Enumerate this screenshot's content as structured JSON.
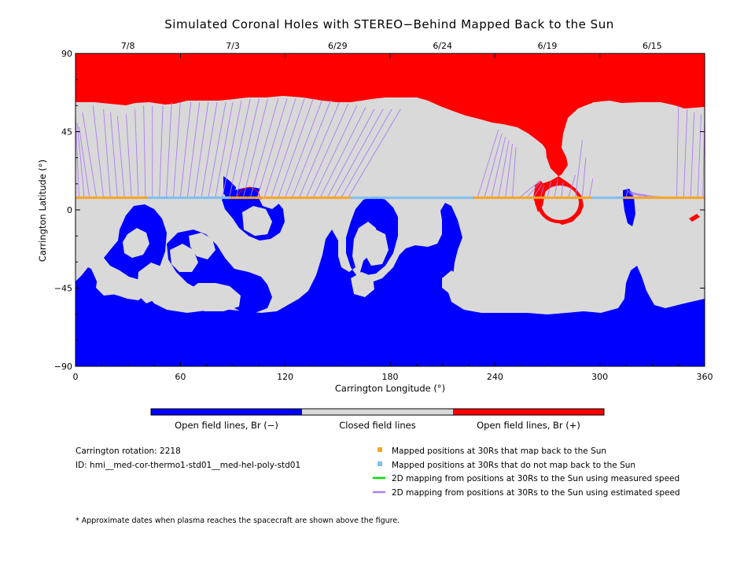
{
  "chart_data": {
    "type": "map",
    "title": "Simulated Coronal Holes with STEREO−Behind Mapped Back to the Sun",
    "xlabel": "Carrington Longitude (°)",
    "ylabel": "Carrington Latitude (°)",
    "xlim": [
      0,
      360
    ],
    "ylim": [
      -90,
      90
    ],
    "x_ticks": [
      0,
      60,
      120,
      180,
      240,
      300,
      360
    ],
    "y_ticks": [
      -90,
      -45,
      0,
      45,
      90
    ],
    "x_tick_labels": [
      "0",
      "60",
      "120",
      "180",
      "240",
      "300",
      "360"
    ],
    "y_tick_labels": [
      "−90",
      "−45",
      "0",
      "45",
      "90"
    ],
    "top_dates": [
      {
        "label": "7/8",
        "lon": 30
      },
      {
        "label": "7/3",
        "lon": 90
      },
      {
        "label": "6/29",
        "lon": 150
      },
      {
        "label": "6/24",
        "lon": 210
      },
      {
        "label": "6/19",
        "lon": 270
      },
      {
        "label": "6/15",
        "lon": 330
      }
    ],
    "colorbar": [
      {
        "label": "Open field lines, Br (−)",
        "color": "#0000ff"
      },
      {
        "label": "Closed field lines",
        "color": "#d9d9d9"
      },
      {
        "label": "Open field lines, Br (+)",
        "color": "#ff0000"
      }
    ],
    "spacecraft_track_lat": 7,
    "mapped_segments": [
      [
        0,
        42
      ],
      [
        87,
        158
      ],
      [
        228,
        296
      ],
      [
        313,
        360
      ]
    ],
    "unmapped_segments": [
      [
        42,
        87
      ],
      [
        158,
        228
      ],
      [
        296,
        313
      ]
    ],
    "estimated_speed_lines": [
      {
        "from_lon": 2,
        "to_lon": 0,
        "to_lat": 55
      },
      {
        "from_lon": 5,
        "to_lon": 1,
        "to_lat": 50
      },
      {
        "from_lon": 8,
        "to_lon": 2,
        "to_lat": 48
      },
      {
        "from_lon": 12,
        "to_lon": 4,
        "to_lat": 56
      },
      {
        "from_lon": 16,
        "to_lon": 10,
        "to_lat": 60
      },
      {
        "from_lon": 20,
        "to_lon": 16,
        "to_lat": 58
      },
      {
        "from_lon": 24,
        "to_lon": 20,
        "to_lat": 56
      },
      {
        "from_lon": 28,
        "to_lon": 24,
        "to_lat": 54
      },
      {
        "from_lon": 32,
        "to_lon": 29,
        "to_lat": 55
      },
      {
        "from_lon": 36,
        "to_lon": 34,
        "to_lat": 58
      },
      {
        "from_lon": 40,
        "to_lon": 39,
        "to_lat": 60
      },
      {
        "from_lon": 44,
        "to_lon": 44,
        "to_lat": 60
      },
      {
        "from_lon": 48,
        "to_lon": 50,
        "to_lat": 60
      },
      {
        "from_lon": 52,
        "to_lon": 55,
        "to_lat": 62
      },
      {
        "from_lon": 56,
        "to_lon": 60,
        "to_lat": 62
      },
      {
        "from_lon": 60,
        "to_lon": 66,
        "to_lat": 62
      },
      {
        "from_lon": 64,
        "to_lon": 71,
        "to_lat": 62
      },
      {
        "from_lon": 68,
        "to_lon": 76,
        "to_lat": 62
      },
      {
        "from_lon": 72,
        "to_lon": 81,
        "to_lat": 62
      },
      {
        "from_lon": 76,
        "to_lon": 86,
        "to_lat": 62
      },
      {
        "from_lon": 80,
        "to_lon": 90,
        "to_lat": 62
      },
      {
        "from_lon": 84,
        "to_lon": 95,
        "to_lat": 63
      },
      {
        "from_lon": 88,
        "to_lon": 100,
        "to_lat": 64
      },
      {
        "from_lon": 92,
        "to_lon": 105,
        "to_lat": 64
      },
      {
        "from_lon": 96,
        "to_lon": 110,
        "to_lat": 64
      },
      {
        "from_lon": 100,
        "to_lon": 116,
        "to_lat": 64
      },
      {
        "from_lon": 104,
        "to_lon": 121,
        "to_lat": 64
      },
      {
        "from_lon": 108,
        "to_lon": 126,
        "to_lat": 64
      },
      {
        "from_lon": 112,
        "to_lon": 131,
        "to_lat": 64
      },
      {
        "from_lon": 116,
        "to_lon": 136,
        "to_lat": 64
      },
      {
        "from_lon": 120,
        "to_lon": 141,
        "to_lat": 63
      },
      {
        "from_lon": 124,
        "to_lon": 146,
        "to_lat": 63
      },
      {
        "from_lon": 128,
        "to_lon": 151,
        "to_lat": 62
      },
      {
        "from_lon": 132,
        "to_lon": 156,
        "to_lat": 61
      },
      {
        "from_lon": 136,
        "to_lon": 161,
        "to_lat": 60
      },
      {
        "from_lon": 140,
        "to_lon": 166,
        "to_lat": 59
      },
      {
        "from_lon": 144,
        "to_lon": 171,
        "to_lat": 58
      },
      {
        "from_lon": 148,
        "to_lon": 176,
        "to_lat": 58
      },
      {
        "from_lon": 152,
        "to_lon": 181,
        "to_lat": 58
      },
      {
        "from_lon": 156,
        "to_lon": 186,
        "to_lat": 58
      },
      {
        "from_lon": 230,
        "to_lon": 242,
        "to_lat": 46
      },
      {
        "from_lon": 234,
        "to_lon": 244,
        "to_lat": 44
      },
      {
        "from_lon": 238,
        "to_lon": 246,
        "to_lat": 42
      },
      {
        "from_lon": 242,
        "to_lon": 248,
        "to_lat": 40
      },
      {
        "from_lon": 246,
        "to_lon": 250,
        "to_lat": 38
      },
      {
        "from_lon": 250,
        "to_lon": 252,
        "to_lat": 36
      },
      {
        "from_lon": 254,
        "to_lon": 266,
        "to_lat": 17
      },
      {
        "from_lon": 258,
        "to_lon": 266,
        "to_lat": 16
      },
      {
        "from_lon": 262,
        "to_lon": 267,
        "to_lat": 15
      },
      {
        "from_lon": 266,
        "to_lon": 268,
        "to_lat": 14
      },
      {
        "from_lon": 270,
        "to_lon": 272,
        "to_lat": 16
      },
      {
        "from_lon": 274,
        "to_lon": 276,
        "to_lat": 18
      },
      {
        "from_lon": 278,
        "to_lon": 279,
        "to_lat": 16
      },
      {
        "from_lon": 282,
        "to_lon": 286,
        "to_lat": 20
      },
      {
        "from_lon": 286,
        "to_lon": 290,
        "to_lat": 40
      },
      {
        "from_lon": 290,
        "to_lon": 292,
        "to_lat": 30
      },
      {
        "from_lon": 294,
        "to_lon": 296,
        "to_lat": 18
      },
      {
        "from_lon": 315,
        "to_lon": 316,
        "to_lat": 12
      },
      {
        "from_lon": 320,
        "to_lon": 316,
        "to_lat": 11
      },
      {
        "from_lon": 325,
        "to_lon": 317,
        "to_lat": 11
      },
      {
        "from_lon": 330,
        "to_lon": 317,
        "to_lat": 10
      },
      {
        "from_lon": 335,
        "to_lon": 318,
        "to_lat": 10
      },
      {
        "from_lon": 340,
        "to_lon": 318,
        "to_lat": 9
      },
      {
        "from_lon": 344,
        "to_lon": 345,
        "to_lat": 60
      },
      {
        "from_lon": 348,
        "to_lon": 350,
        "to_lat": 58
      },
      {
        "from_lon": 352,
        "to_lon": 354,
        "to_lat": 56
      },
      {
        "from_lon": 356,
        "to_lon": 358,
        "to_lat": 55
      },
      {
        "from_lon": 359,
        "to_lon": 360,
        "to_lat": 54
      }
    ]
  },
  "info": {
    "carrington_rotation": "Carrington rotation: 2218",
    "id": "ID: hmi__med-cor-thermo1-std01__med-hel-poly-std01"
  },
  "legend": [
    {
      "label": "Mapped positions at 30Rs that map back to the Sun",
      "color": "#f5a623",
      "kind": "square"
    },
    {
      "label": "Mapped positions at 30Rs that do not map back to the Sun",
      "color": "#7fbfef",
      "kind": "square"
    },
    {
      "label": "2D mapping from positions at 30Rs to the Sun using measured speed",
      "color": "#00e000",
      "kind": "line"
    },
    {
      "label": "2D mapping from positions at 30Rs to the Sun using estimated speed",
      "color": "#b07cf0",
      "kind": "line"
    }
  ],
  "footnote": "* Approximate dates when plasma reaches the spacecraft are shown above the figure."
}
